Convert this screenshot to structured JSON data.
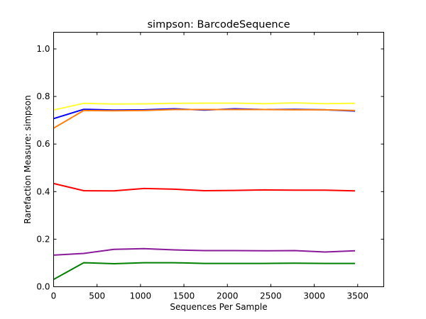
{
  "chart_data": {
    "type": "line",
    "title": "simpson: BarcodeSequence",
    "xlabel": "Sequences Per Sample",
    "ylabel": "Rarefaction Measure: simpson",
    "xlim": [
      0,
      3800
    ],
    "ylim": [
      0.0,
      1.07
    ],
    "xticks": [
      0,
      500,
      1000,
      1500,
      2000,
      2500,
      3000,
      3500
    ],
    "yticks": [
      0.0,
      0.2,
      0.4,
      0.6,
      0.8,
      1.0
    ],
    "ytick_labels": [
      "0.0",
      "0.2",
      "0.4",
      "0.6",
      "0.8",
      "1.0"
    ],
    "grid": false,
    "x": [
      1,
      347,
      694,
      1041,
      1388,
      1735,
      2082,
      2429,
      2776,
      3123,
      3470
    ],
    "series": [
      {
        "color": "#ffff33",
        "values": [
          0.743,
          0.771,
          0.768,
          0.769,
          0.771,
          0.772,
          0.772,
          0.77,
          0.773,
          0.77,
          0.771
        ]
      },
      {
        "color": "#0000ff",
        "values": [
          0.707,
          0.746,
          0.743,
          0.744,
          0.748,
          0.743,
          0.748,
          0.745,
          0.746,
          0.744,
          0.739
        ]
      },
      {
        "color": "#ff7f0e",
        "values": [
          0.667,
          0.741,
          0.74,
          0.741,
          0.745,
          0.745,
          0.745,
          0.745,
          0.744,
          0.744,
          0.741
        ]
      },
      {
        "color": "#ff0000",
        "values": [
          0.434,
          0.404,
          0.403,
          0.413,
          0.41,
          0.404,
          0.405,
          0.407,
          0.406,
          0.406,
          0.403
        ]
      },
      {
        "color": "#8b1a9b",
        "values": [
          0.133,
          0.14,
          0.157,
          0.16,
          0.155,
          0.152,
          0.152,
          0.151,
          0.152,
          0.146,
          0.151
        ]
      },
      {
        "color": "#008000",
        "values": [
          0.031,
          0.101,
          0.097,
          0.101,
          0.101,
          0.098,
          0.098,
          0.098,
          0.099,
          0.098,
          0.098
        ]
      }
    ]
  }
}
